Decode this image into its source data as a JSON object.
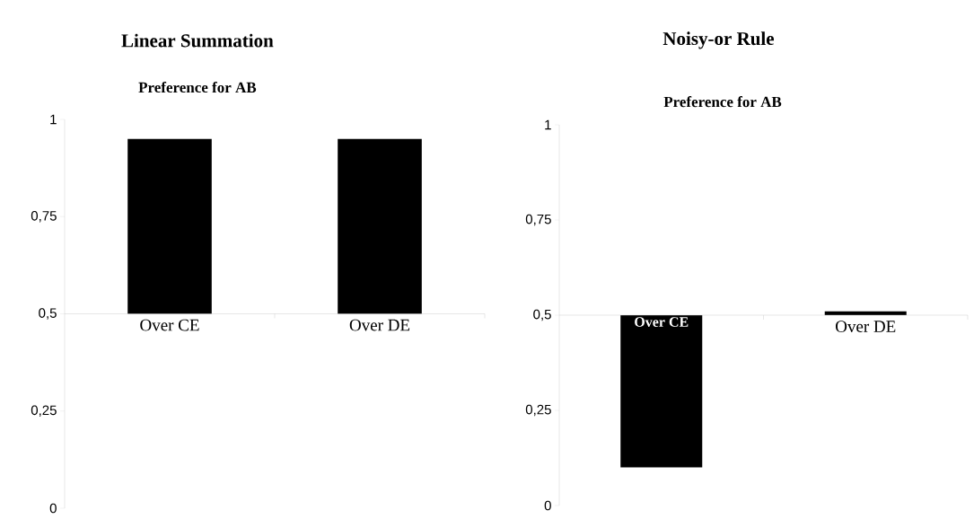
{
  "chart_data": [
    {
      "type": "bar",
      "title": "Linear Summation",
      "subtitle": "Preference for AB",
      "categories": [
        "Over CE",
        "Over DE"
      ],
      "base": [
        0.5,
        0.5
      ],
      "values": [
        0.45,
        0.45
      ],
      "color": "#000000",
      "ylim": [
        0,
        1
      ],
      "yticks": [
        0,
        {
          "value": 0.25,
          "label": "0,25"
        },
        {
          "value": 0.5,
          "label": "0,5"
        },
        {
          "value": 0.75,
          "label": "0,75"
        },
        1
      ]
    },
    {
      "type": "bar",
      "title": "Noisy-or Rule",
      "subtitle": "Preference for AB",
      "categories": [
        "Over CE",
        "Over DE"
      ],
      "base": [
        0.5,
        0.5
      ],
      "values": [
        -0.4,
        0.01
      ],
      "color": "#000000",
      "ylim": [
        0,
        1
      ],
      "yticks": [
        0,
        {
          "value": 0.25,
          "label": "0,25"
        },
        {
          "value": 0.5,
          "label": "0,5"
        },
        {
          "value": 0.75,
          "label": "0,75"
        },
        1
      ]
    }
  ]
}
